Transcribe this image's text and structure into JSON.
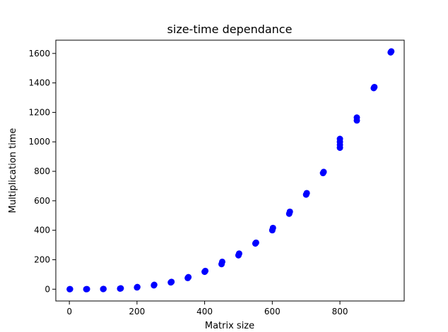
{
  "chart_data": {
    "type": "scatter",
    "title": "size-time dependance",
    "xlabel": "Matrix size",
    "ylabel": "Multiplication time",
    "xlim": [
      -40,
      990
    ],
    "ylim": [
      -80,
      1690
    ],
    "xticks": [
      0,
      200,
      400,
      600,
      800
    ],
    "yticks": [
      0,
      200,
      400,
      600,
      800,
      1000,
      1200,
      1400,
      1600
    ],
    "grid": false,
    "legend": "none",
    "marker_color": "#0000ff",
    "series": [
      {
        "x": [
          1,
          2,
          50,
          52,
          100,
          101,
          150,
          152,
          200,
          201,
          250,
          251,
          300,
          302,
          350,
          352,
          400,
          402,
          450,
          452,
          500,
          502,
          550,
          552,
          600,
          602,
          650,
          652,
          700,
          702,
          750,
          752,
          800,
          800,
          800,
          800,
          850,
          850,
          900,
          902,
          950,
          952
        ],
        "y": [
          0,
          1,
          0,
          1,
          1,
          2,
          4,
          6,
          12,
          15,
          26,
          30,
          46,
          50,
          76,
          82,
          118,
          124,
          170,
          186,
          230,
          242,
          310,
          316,
          400,
          416,
          512,
          526,
          642,
          652,
          788,
          796,
          960,
          980,
          1000,
          1020,
          1145,
          1165,
          1365,
          1372,
          1607,
          1614
        ]
      }
    ]
  }
}
